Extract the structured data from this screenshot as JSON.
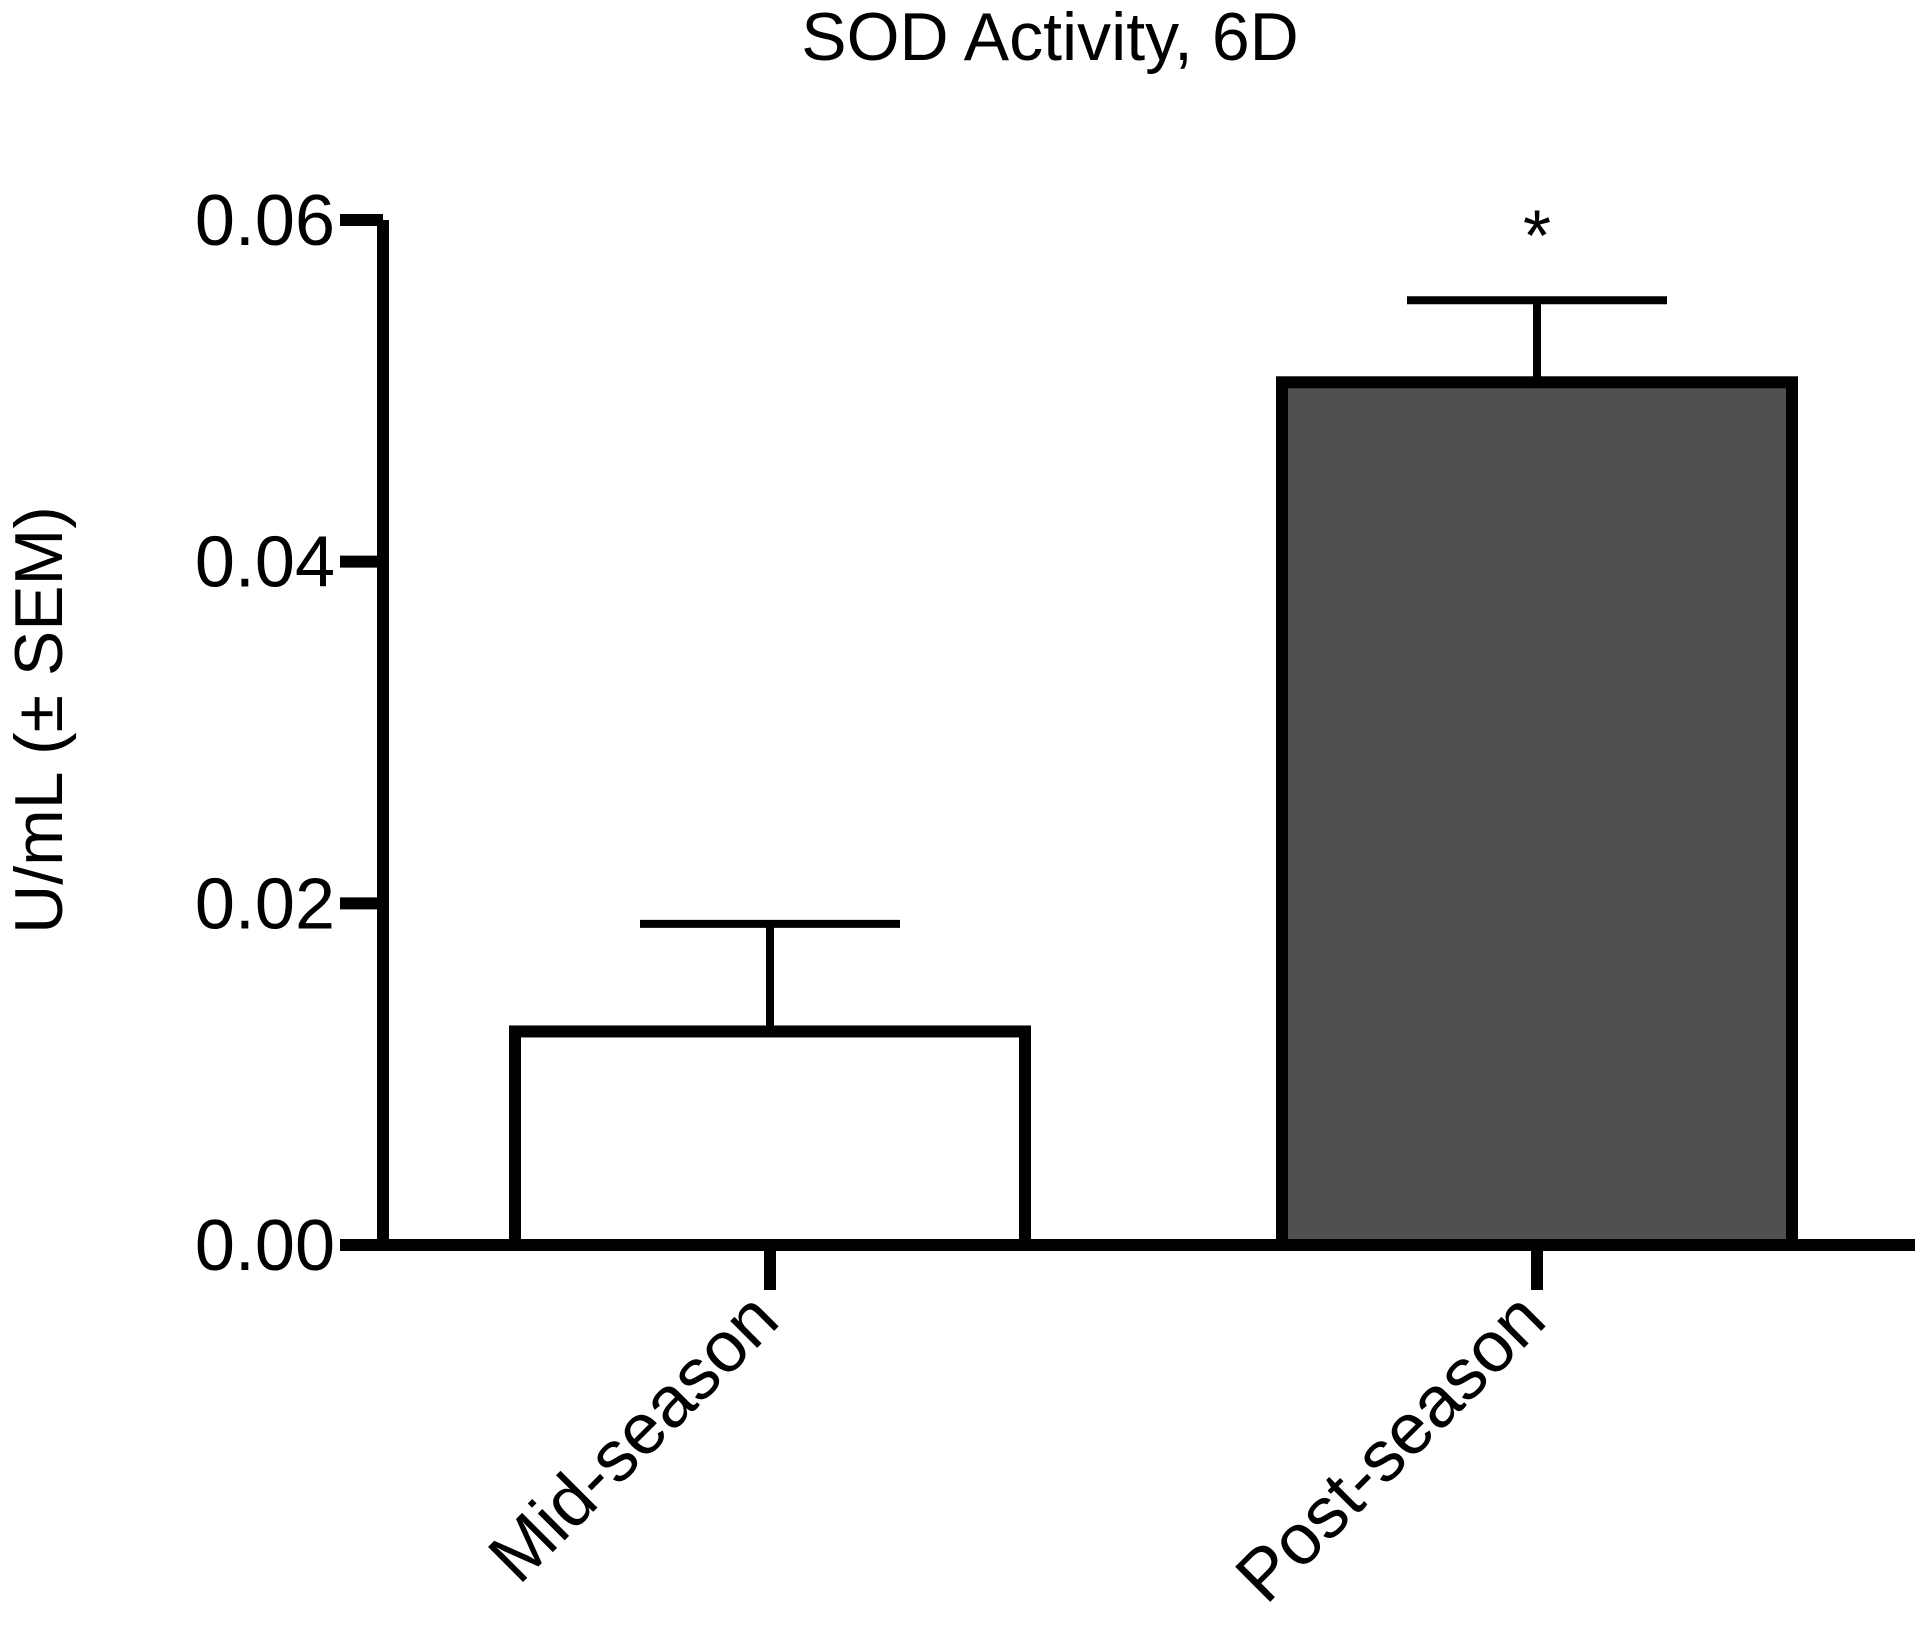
{
  "chart_data": {
    "type": "bar",
    "title": "SOD Activity, 6D",
    "xlabel": "",
    "ylabel": "U/mL (± SEM)",
    "ylim": [
      0,
      0.06
    ],
    "yticks": [
      0,
      0.02,
      0.04,
      0.06
    ],
    "ytick_labels": [
      "0.00",
      "0.02",
      "0.04",
      "0.06"
    ],
    "categories": [
      "Mid-season",
      "Post-season"
    ],
    "values": [
      0.0125,
      0.0505
    ],
    "errors": [
      0.0063,
      0.0048
    ],
    "bar_colors": [
      "#ffffff",
      "#505050"
    ],
    "annotations": [
      "",
      "*"
    ],
    "grid": false,
    "legend": "none"
  }
}
